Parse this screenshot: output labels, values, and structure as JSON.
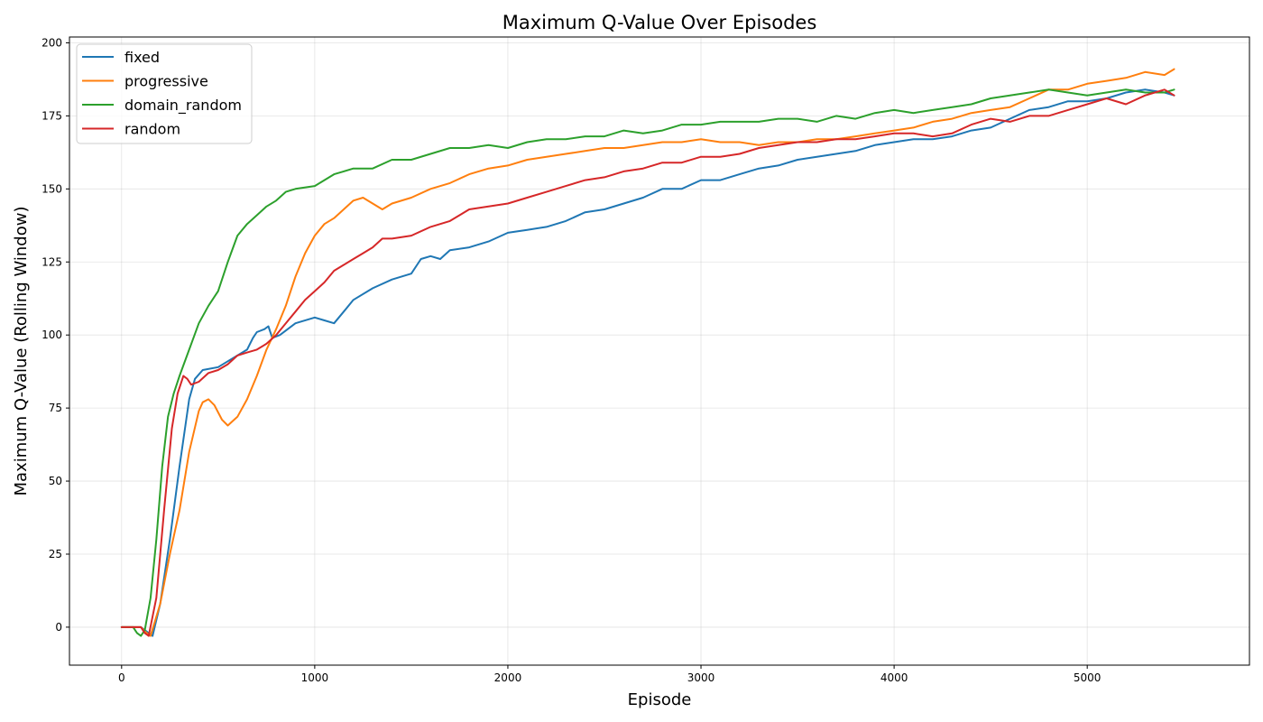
{
  "chart_data": {
    "type": "line",
    "title": "Maximum Q-Value Over Episodes",
    "xlabel": "Episode",
    "ylabel": "Maximum Q-Value (Rolling Window)",
    "xlim": [
      -270,
      5840
    ],
    "ylim": [
      -13,
      202
    ],
    "xticks": [
      0,
      1000,
      2000,
      3000,
      4000,
      5000
    ],
    "yticks": [
      0,
      25,
      50,
      75,
      100,
      125,
      150,
      175,
      200
    ],
    "grid": true,
    "legend_position": "top-left",
    "series": [
      {
        "name": "fixed",
        "color": "#1f77b4",
        "points": [
          [
            0,
            0
          ],
          [
            100,
            0
          ],
          [
            140,
            -2
          ],
          [
            160,
            -3
          ],
          [
            200,
            8
          ],
          [
            250,
            30
          ],
          [
            300,
            55
          ],
          [
            350,
            78
          ],
          [
            380,
            85
          ],
          [
            420,
            88
          ],
          [
            500,
            89
          ],
          [
            550,
            91
          ],
          [
            600,
            93
          ],
          [
            650,
            95
          ],
          [
            680,
            99
          ],
          [
            700,
            101
          ],
          [
            740,
            102
          ],
          [
            760,
            103
          ],
          [
            780,
            99
          ],
          [
            820,
            100
          ],
          [
            900,
            104
          ],
          [
            1000,
            106
          ],
          [
            1050,
            105
          ],
          [
            1100,
            104
          ],
          [
            1150,
            108
          ],
          [
            1200,
            112
          ],
          [
            1300,
            116
          ],
          [
            1400,
            119
          ],
          [
            1500,
            121
          ],
          [
            1550,
            126
          ],
          [
            1600,
            127
          ],
          [
            1650,
            126
          ],
          [
            1700,
            129
          ],
          [
            1800,
            130
          ],
          [
            1900,
            132
          ],
          [
            2000,
            135
          ],
          [
            2100,
            136
          ],
          [
            2200,
            137
          ],
          [
            2300,
            139
          ],
          [
            2400,
            142
          ],
          [
            2500,
            143
          ],
          [
            2600,
            145
          ],
          [
            2700,
            147
          ],
          [
            2800,
            150
          ],
          [
            2900,
            150
          ],
          [
            3000,
            153
          ],
          [
            3100,
            153
          ],
          [
            3200,
            155
          ],
          [
            3300,
            157
          ],
          [
            3400,
            158
          ],
          [
            3500,
            160
          ],
          [
            3600,
            161
          ],
          [
            3700,
            162
          ],
          [
            3800,
            163
          ],
          [
            3900,
            165
          ],
          [
            4000,
            166
          ],
          [
            4100,
            167
          ],
          [
            4200,
            167
          ],
          [
            4300,
            168
          ],
          [
            4400,
            170
          ],
          [
            4500,
            171
          ],
          [
            4600,
            174
          ],
          [
            4700,
            177
          ],
          [
            4800,
            178
          ],
          [
            4900,
            180
          ],
          [
            5000,
            180
          ],
          [
            5100,
            181
          ],
          [
            5200,
            183
          ],
          [
            5300,
            184
          ],
          [
            5400,
            183
          ],
          [
            5450,
            182
          ]
        ]
      },
      {
        "name": "progressive",
        "color": "#ff7f0e",
        "points": [
          [
            0,
            0
          ],
          [
            100,
            0
          ],
          [
            130,
            -2
          ],
          [
            150,
            -3
          ],
          [
            200,
            8
          ],
          [
            250,
            25
          ],
          [
            300,
            40
          ],
          [
            350,
            60
          ],
          [
            400,
            74
          ],
          [
            420,
            77
          ],
          [
            450,
            78
          ],
          [
            480,
            76
          ],
          [
            520,
            71
          ],
          [
            550,
            69
          ],
          [
            600,
            72
          ],
          [
            650,
            78
          ],
          [
            700,
            86
          ],
          [
            750,
            95
          ],
          [
            800,
            102
          ],
          [
            850,
            110
          ],
          [
            900,
            120
          ],
          [
            950,
            128
          ],
          [
            1000,
            134
          ],
          [
            1050,
            138
          ],
          [
            1100,
            140
          ],
          [
            1150,
            143
          ],
          [
            1200,
            146
          ],
          [
            1250,
            147
          ],
          [
            1300,
            145
          ],
          [
            1350,
            143
          ],
          [
            1400,
            145
          ],
          [
            1500,
            147
          ],
          [
            1600,
            150
          ],
          [
            1700,
            152
          ],
          [
            1800,
            155
          ],
          [
            1900,
            157
          ],
          [
            2000,
            158
          ],
          [
            2100,
            160
          ],
          [
            2200,
            161
          ],
          [
            2300,
            162
          ],
          [
            2400,
            163
          ],
          [
            2500,
            164
          ],
          [
            2600,
            164
          ],
          [
            2700,
            165
          ],
          [
            2800,
            166
          ],
          [
            2900,
            166
          ],
          [
            3000,
            167
          ],
          [
            3100,
            166
          ],
          [
            3200,
            166
          ],
          [
            3300,
            165
          ],
          [
            3400,
            166
          ],
          [
            3500,
            166
          ],
          [
            3600,
            167
          ],
          [
            3700,
            167
          ],
          [
            3800,
            168
          ],
          [
            3900,
            169
          ],
          [
            4000,
            170
          ],
          [
            4100,
            171
          ],
          [
            4200,
            173
          ],
          [
            4300,
            174
          ],
          [
            4400,
            176
          ],
          [
            4500,
            177
          ],
          [
            4600,
            178
          ],
          [
            4700,
            181
          ],
          [
            4800,
            184
          ],
          [
            4900,
            184
          ],
          [
            5000,
            186
          ],
          [
            5100,
            187
          ],
          [
            5200,
            188
          ],
          [
            5300,
            190
          ],
          [
            5400,
            189
          ],
          [
            5450,
            191
          ]
        ]
      },
      {
        "name": "domain_random",
        "color": "#2ca02c",
        "points": [
          [
            0,
            0
          ],
          [
            60,
            0
          ],
          [
            80,
            -2
          ],
          [
            100,
            -3
          ],
          [
            120,
            -1
          ],
          [
            150,
            10
          ],
          [
            180,
            30
          ],
          [
            210,
            55
          ],
          [
            240,
            72
          ],
          [
            270,
            80
          ],
          [
            300,
            86
          ],
          [
            350,
            95
          ],
          [
            400,
            104
          ],
          [
            450,
            110
          ],
          [
            500,
            115
          ],
          [
            550,
            125
          ],
          [
            600,
            134
          ],
          [
            650,
            138
          ],
          [
            700,
            141
          ],
          [
            750,
            144
          ],
          [
            800,
            146
          ],
          [
            850,
            149
          ],
          [
            900,
            150
          ],
          [
            1000,
            151
          ],
          [
            1050,
            153
          ],
          [
            1100,
            155
          ],
          [
            1150,
            156
          ],
          [
            1200,
            157
          ],
          [
            1300,
            157
          ],
          [
            1400,
            160
          ],
          [
            1500,
            160
          ],
          [
            1600,
            162
          ],
          [
            1700,
            164
          ],
          [
            1800,
            164
          ],
          [
            1900,
            165
          ],
          [
            2000,
            164
          ],
          [
            2100,
            166
          ],
          [
            2200,
            167
          ],
          [
            2300,
            167
          ],
          [
            2400,
            168
          ],
          [
            2500,
            168
          ],
          [
            2600,
            170
          ],
          [
            2700,
            169
          ],
          [
            2800,
            170
          ],
          [
            2900,
            172
          ],
          [
            3000,
            172
          ],
          [
            3100,
            173
          ],
          [
            3200,
            173
          ],
          [
            3300,
            173
          ],
          [
            3400,
            174
          ],
          [
            3500,
            174
          ],
          [
            3600,
            173
          ],
          [
            3700,
            175
          ],
          [
            3800,
            174
          ],
          [
            3900,
            176
          ],
          [
            4000,
            177
          ],
          [
            4100,
            176
          ],
          [
            4200,
            177
          ],
          [
            4300,
            178
          ],
          [
            4400,
            179
          ],
          [
            4500,
            181
          ],
          [
            4600,
            182
          ],
          [
            4700,
            183
          ],
          [
            4800,
            184
          ],
          [
            4900,
            183
          ],
          [
            5000,
            182
          ],
          [
            5100,
            183
          ],
          [
            5200,
            184
          ],
          [
            5300,
            183
          ],
          [
            5400,
            183
          ],
          [
            5450,
            184
          ]
        ]
      },
      {
        "name": "random",
        "color": "#d62728",
        "points": [
          [
            0,
            0
          ],
          [
            100,
            0
          ],
          [
            120,
            -2
          ],
          [
            140,
            -3
          ],
          [
            180,
            10
          ],
          [
            220,
            40
          ],
          [
            260,
            68
          ],
          [
            290,
            80
          ],
          [
            320,
            86
          ],
          [
            340,
            85
          ],
          [
            360,
            83
          ],
          [
            400,
            84
          ],
          [
            450,
            87
          ],
          [
            500,
            88
          ],
          [
            550,
            90
          ],
          [
            600,
            93
          ],
          [
            650,
            94
          ],
          [
            700,
            95
          ],
          [
            750,
            97
          ],
          [
            800,
            100
          ],
          [
            850,
            104
          ],
          [
            900,
            108
          ],
          [
            950,
            112
          ],
          [
            1000,
            115
          ],
          [
            1050,
            118
          ],
          [
            1100,
            122
          ],
          [
            1150,
            124
          ],
          [
            1200,
            126
          ],
          [
            1250,
            128
          ],
          [
            1300,
            130
          ],
          [
            1350,
            133
          ],
          [
            1400,
            133
          ],
          [
            1500,
            134
          ],
          [
            1600,
            137
          ],
          [
            1700,
            139
          ],
          [
            1800,
            143
          ],
          [
            1900,
            144
          ],
          [
            2000,
            145
          ],
          [
            2100,
            147
          ],
          [
            2200,
            149
          ],
          [
            2300,
            151
          ],
          [
            2400,
            153
          ],
          [
            2500,
            154
          ],
          [
            2600,
            156
          ],
          [
            2700,
            157
          ],
          [
            2800,
            159
          ],
          [
            2900,
            159
          ],
          [
            3000,
            161
          ],
          [
            3100,
            161
          ],
          [
            3200,
            162
          ],
          [
            3300,
            164
          ],
          [
            3400,
            165
          ],
          [
            3500,
            166
          ],
          [
            3600,
            166
          ],
          [
            3700,
            167
          ],
          [
            3800,
            167
          ],
          [
            3900,
            168
          ],
          [
            4000,
            169
          ],
          [
            4100,
            169
          ],
          [
            4200,
            168
          ],
          [
            4300,
            169
          ],
          [
            4400,
            172
          ],
          [
            4500,
            174
          ],
          [
            4600,
            173
          ],
          [
            4700,
            175
          ],
          [
            4800,
            175
          ],
          [
            4900,
            177
          ],
          [
            5000,
            179
          ],
          [
            5100,
            181
          ],
          [
            5200,
            179
          ],
          [
            5300,
            182
          ],
          [
            5400,
            184
          ],
          [
            5450,
            182
          ]
        ]
      }
    ]
  }
}
